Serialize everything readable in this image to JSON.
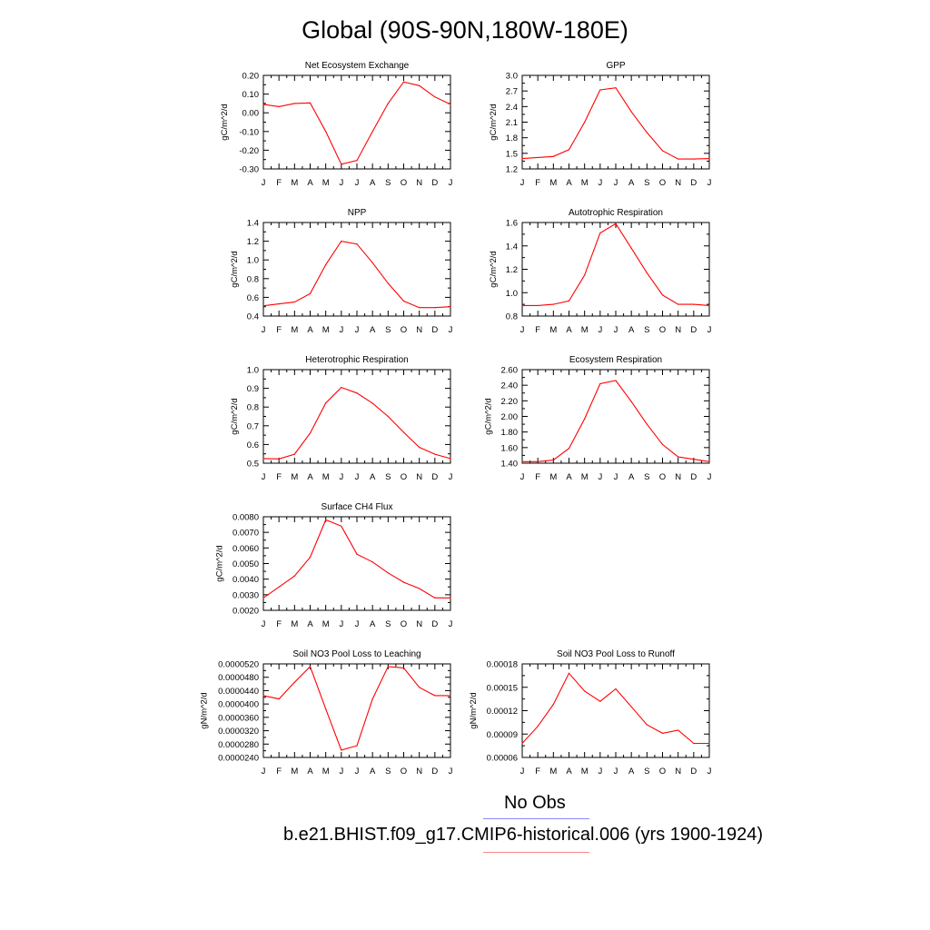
{
  "figure": {
    "title": "Global (90S-90N,180W-180E)",
    "line_color": "#ff0000",
    "legend": [
      {
        "label": "No Obs",
        "color": "#8888ff"
      },
      {
        "label": "b.e21.BHIST.f09_g17.CMIP6-historical.006 (yrs 1900-1924)",
        "color": "#ff8888"
      }
    ]
  },
  "chart_data": [
    {
      "type": "line",
      "title": "Net Ecosystem Exchange",
      "ylabel": "gC/m^2/d",
      "x": [
        "J",
        "F",
        "M",
        "A",
        "M",
        "J",
        "J",
        "A",
        "S",
        "O",
        "N",
        "D",
        "J"
      ],
      "ylim": [
        -0.3,
        0.2
      ],
      "yticks": [
        "0.20",
        "0.10",
        "0.00",
        "-0.10",
        "-0.20",
        "-0.30"
      ],
      "yticks_values": [
        0.2,
        0.1,
        0.0,
        -0.1,
        -0.2,
        -0.3
      ],
      "values": [
        0.045,
        0.033,
        0.05,
        0.053,
        -0.1,
        -0.275,
        -0.255,
        -0.1,
        0.05,
        0.165,
        0.145,
        0.085,
        0.045
      ]
    },
    {
      "type": "line",
      "title": "GPP",
      "ylabel": "gC/m^2/d",
      "x": [
        "J",
        "F",
        "M",
        "A",
        "M",
        "J",
        "J",
        "A",
        "S",
        "O",
        "N",
        "D",
        "J"
      ],
      "ylim": [
        1.2,
        3.0
      ],
      "yticks": [
        "3.0",
        "2.7",
        "2.4",
        "2.1",
        "1.8",
        "1.5",
        "1.2"
      ],
      "yticks_values": [
        3.0,
        2.7,
        2.4,
        2.1,
        1.8,
        1.5,
        1.2
      ],
      "values": [
        1.4,
        1.42,
        1.44,
        1.57,
        2.1,
        2.72,
        2.76,
        2.3,
        1.9,
        1.55,
        1.39,
        1.39,
        1.4
      ]
    },
    {
      "type": "line",
      "title": "NPP",
      "ylabel": "gC/m^2/d",
      "x": [
        "J",
        "F",
        "M",
        "A",
        "M",
        "J",
        "J",
        "A",
        "S",
        "O",
        "N",
        "D",
        "J"
      ],
      "ylim": [
        0.4,
        1.4
      ],
      "yticks": [
        "1.4",
        "1.2",
        "1.0",
        "0.8",
        "0.6",
        "0.4"
      ],
      "yticks_values": [
        1.4,
        1.2,
        1.0,
        0.8,
        0.6,
        0.4
      ],
      "values": [
        0.51,
        0.53,
        0.55,
        0.64,
        0.95,
        1.2,
        1.17,
        0.97,
        0.75,
        0.56,
        0.49,
        0.49,
        0.5
      ]
    },
    {
      "type": "line",
      "title": "Autotrophic Respiration",
      "ylabel": "gC/m^2/d",
      "x": [
        "J",
        "F",
        "M",
        "A",
        "M",
        "J",
        "J",
        "A",
        "S",
        "O",
        "N",
        "D",
        "J"
      ],
      "ylim": [
        0.8,
        1.6
      ],
      "yticks": [
        "1.6",
        "1.4",
        "1.2",
        "1.0",
        "0.8"
      ],
      "yticks_values": [
        1.6,
        1.4,
        1.2,
        1.0,
        0.8
      ],
      "values": [
        0.89,
        0.89,
        0.9,
        0.93,
        1.15,
        1.51,
        1.59,
        1.38,
        1.17,
        0.98,
        0.9,
        0.9,
        0.89
      ]
    },
    {
      "type": "line",
      "title": "Heterotrophic Respiration",
      "ylabel": "gC/m^2/d",
      "x": [
        "J",
        "F",
        "M",
        "A",
        "M",
        "J",
        "J",
        "A",
        "S",
        "O",
        "N",
        "D",
        "J"
      ],
      "ylim": [
        0.5,
        1.0
      ],
      "yticks": [
        "1.0",
        "0.9",
        "0.8",
        "0.7",
        "0.6",
        "0.5"
      ],
      "yticks_values": [
        1.0,
        0.9,
        0.8,
        0.7,
        0.6,
        0.5
      ],
      "values": [
        0.525,
        0.523,
        0.548,
        0.66,
        0.822,
        0.905,
        0.875,
        0.82,
        0.75,
        0.665,
        0.585,
        0.548,
        0.525
      ]
    },
    {
      "type": "line",
      "title": "Ecosystem Respiration",
      "ylabel": "gC/m^2/d",
      "x": [
        "J",
        "F",
        "M",
        "A",
        "M",
        "J",
        "J",
        "A",
        "S",
        "O",
        "N",
        "D",
        "J"
      ],
      "ylim": [
        1.4,
        2.6
      ],
      "yticks": [
        "2.60",
        "2.40",
        "2.20",
        "2.00",
        "1.80",
        "1.60",
        "1.40"
      ],
      "yticks_values": [
        2.6,
        2.4,
        2.2,
        2.0,
        1.8,
        1.6,
        1.4
      ],
      "values": [
        1.42,
        1.42,
        1.44,
        1.59,
        1.97,
        2.42,
        2.46,
        2.19,
        1.9,
        1.64,
        1.48,
        1.45,
        1.42
      ]
    },
    {
      "type": "line",
      "title": "Surface CH4 Flux",
      "ylabel": "gC/m^2/d",
      "x": [
        "J",
        "F",
        "M",
        "A",
        "M",
        "J",
        "J",
        "A",
        "S",
        "O",
        "N",
        "D",
        "J"
      ],
      "ylim": [
        0.002,
        0.008
      ],
      "yticks": [
        "0.0080",
        "0.0070",
        "0.0060",
        "0.0050",
        "0.0040",
        "0.0030",
        "0.0020"
      ],
      "yticks_values": [
        0.008,
        0.007,
        0.006,
        0.005,
        0.004,
        0.003,
        0.002
      ],
      "values": [
        0.0028,
        0.0035,
        0.0042,
        0.0054,
        0.0078,
        0.0074,
        0.0056,
        0.0051,
        0.0044,
        0.0038,
        0.0034,
        0.0028,
        0.0028
      ]
    },
    {
      "type": "line",
      "title": "Soil NO3 Pool Loss to Leaching",
      "ylabel": "gN/m^2/d",
      "x": [
        "J",
        "F",
        "M",
        "A",
        "M",
        "J",
        "J",
        "A",
        "S",
        "O",
        "N",
        "D",
        "J"
      ],
      "ylim": [
        2.4e-05,
        5.2e-05
      ],
      "yticks": [
        "0.0000520",
        "0.0000480",
        "0.0000440",
        "0.0000400",
        "0.0000360",
        "0.0000320",
        "0.0000280",
        "0.0000240"
      ],
      "yticks_values": [
        5.2e-05,
        4.8e-05,
        4.4e-05,
        4e-05,
        3.6e-05,
        3.2e-05,
        2.8e-05,
        2.4e-05
      ],
      "values": [
        4.25e-05,
        4.15e-05,
        4.65e-05,
        5.12e-05,
        3.85e-05,
        2.62e-05,
        2.75e-05,
        4.15e-05,
        5.12e-05,
        5.08e-05,
        4.5e-05,
        4.25e-05,
        4.25e-05
      ]
    },
    {
      "type": "line",
      "title": "Soil NO3 Pool Loss to Runoff",
      "ylabel": "gN/m^2/d",
      "x": [
        "J",
        "F",
        "M",
        "A",
        "M",
        "J",
        "J",
        "A",
        "S",
        "O",
        "N",
        "D",
        "J"
      ],
      "ylim": [
        6e-05,
        0.00018
      ],
      "yticks": [
        "0.00018",
        "0.00015",
        "0.00012",
        "0.00009",
        "0.00006"
      ],
      "yticks_values": [
        0.00018,
        0.00015,
        0.00012,
        9e-05,
        6e-05
      ],
      "values": [
        7.8e-05,
        0.0001,
        0.000128,
        0.000168,
        0.000145,
        0.000132,
        0.000148,
        0.000125,
        0.000102,
        9.1e-05,
        9.5e-05,
        7.8e-05,
        7.8e-05
      ]
    }
  ]
}
